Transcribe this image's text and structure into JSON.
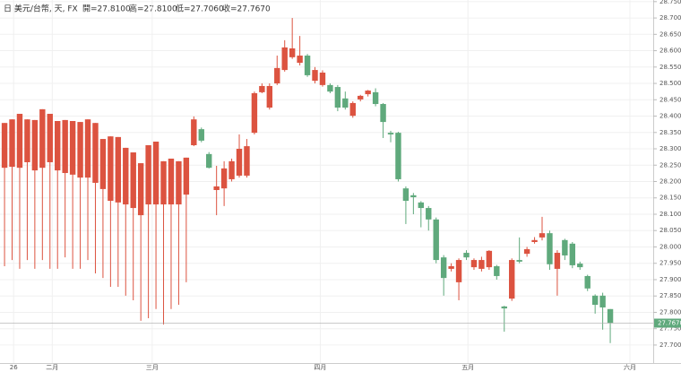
{
  "chart_data": {
    "type": "candlestick",
    "header": {
      "symbol": "日 美元/台幣, 天, FX",
      "open": "開=27.8100",
      "high": "高=27.8100",
      "low": "低=27.7060",
      "close": "收=27.7670"
    },
    "up_color": "#dc5340",
    "down_color": "#5fa97c",
    "grid": true,
    "open": [
      28.242,
      28.245,
      28.242,
      28.259,
      28.234,
      28.242,
      28.259,
      28.234,
      28.226,
      28.221,
      28.212,
      28.212,
      28.196,
      28.177,
      28.141,
      28.136,
      28.13,
      28.119,
      28.097,
      28.13,
      28.13,
      28.13,
      28.13,
      28.13,
      28.16,
      28.311,
      28.36,
      28.284,
      28.174,
      28.179,
      28.207,
      28.218,
      28.218,
      28.349,
      28.473,
      28.426,
      28.5,
      28.541,
      28.58,
      28.563,
      28.585,
      28.508,
      28.495,
      28.495,
      28.489,
      28.454,
      28.401,
      28.451,
      28.467,
      28.473,
      28.437,
      28.349,
      28.349,
      28.179,
      28.158,
      28.136,
      28.119,
      28.084,
      27.968,
      27.933,
      27.892,
      27.982,
      27.938,
      27.933,
      27.938,
      27.941,
      27.818,
      27.842,
      27.96,
      27.979,
      28.015,
      28.029,
      28.042,
      27.933,
      28.021,
      28.01,
      27.949,
      27.911,
      27.851,
      27.851,
      27.81
    ],
    "high": [
      28.379,
      28.39,
      28.407,
      28.39,
      28.388,
      28.421,
      28.407,
      28.385,
      28.388,
      28.385,
      28.382,
      28.39,
      28.379,
      28.33,
      28.338,
      28.336,
      28.303,
      28.289,
      28.256,
      28.311,
      28.322,
      28.262,
      28.27,
      28.262,
      28.273,
      28.399,
      28.365,
      28.29,
      28.248,
      28.262,
      28.27,
      28.344,
      28.33,
      28.475,
      28.5,
      28.5,
      28.585,
      28.632,
      28.7,
      28.645,
      28.59,
      28.55,
      28.54,
      28.5,
      28.495,
      28.475,
      28.445,
      28.465,
      28.48,
      28.485,
      28.44,
      28.355,
      28.352,
      28.185,
      28.165,
      28.14,
      28.125,
      28.09,
      27.975,
      27.95,
      27.965,
      27.99,
      27.965,
      27.97,
      27.99,
      27.945,
      27.82,
      27.965,
      28.029,
      28.0,
      28.03,
      28.092,
      28.05,
      27.99,
      28.025,
      28.015,
      27.955,
      27.915,
      27.855,
      27.86,
      27.81
    ],
    "low": [
      27.941,
      27.96,
      27.933,
      27.96,
      27.933,
      27.96,
      27.933,
      27.933,
      27.968,
      27.933,
      27.933,
      27.96,
      27.919,
      27.905,
      27.878,
      27.878,
      27.851,
      27.837,
      27.774,
      27.782,
      27.81,
      27.763,
      27.81,
      27.823,
      27.892,
      28.308,
      28.32,
      28.24,
      28.097,
      28.125,
      28.2,
      28.212,
      28.212,
      28.344,
      28.47,
      28.42,
      28.495,
      28.536,
      28.575,
      28.555,
      28.52,
      28.5,
      28.49,
      28.47,
      28.415,
      28.42,
      28.395,
      28.445,
      28.46,
      28.43,
      28.333,
      28.32,
      28.2,
      28.07,
      28.1,
      28.06,
      28.05,
      27.95,
      27.851,
      27.925,
      27.837,
      27.96,
      27.93,
      27.925,
      27.93,
      27.9,
      27.741,
      27.835,
      27.95,
      27.97,
      28.01,
      28.02,
      27.93,
      27.851,
      27.96,
      27.935,
      27.93,
      27.865,
      27.796,
      27.747,
      27.706
    ],
    "close": [
      28.379,
      28.39,
      28.407,
      28.39,
      28.388,
      28.421,
      28.407,
      28.385,
      28.388,
      28.385,
      28.382,
      28.39,
      28.379,
      28.33,
      28.338,
      28.336,
      28.303,
      28.289,
      28.256,
      28.311,
      28.322,
      28.262,
      28.27,
      28.262,
      28.273,
      28.39,
      28.325,
      28.242,
      28.185,
      28.24,
      28.262,
      28.3,
      28.308,
      28.47,
      28.492,
      28.492,
      28.547,
      28.61,
      28.607,
      28.585,
      28.525,
      28.541,
      28.533,
      28.475,
      28.426,
      28.426,
      28.44,
      28.462,
      28.478,
      28.437,
      28.382,
      28.344,
      28.207,
      28.141,
      28.152,
      28.119,
      28.084,
      27.96,
      27.905,
      27.941,
      27.96,
      27.968,
      27.96,
      27.96,
      27.988,
      27.911,
      27.812,
      27.96,
      27.955,
      27.993,
      28.021,
      28.042,
      27.947,
      27.982,
      27.974,
      27.944,
      27.938,
      27.873,
      27.823,
      27.815,
      27.767
    ],
    "last_price": {
      "value": 27.767,
      "label": "27.7670"
    },
    "xlim": [
      -0.6,
      85.2
    ],
    "xticks": [
      {
        "value": 1.2,
        "label": "26"
      },
      {
        "value": 6.3,
        "label": "二月"
      },
      {
        "value": 19.5,
        "label": "三月"
      },
      {
        "value": 41.7,
        "label": "四月"
      },
      {
        "value": 61.2,
        "label": "五月"
      },
      {
        "value": 82.6,
        "label": "六月"
      }
    ],
    "ylim": [
      27.645,
      28.755
    ],
    "yticks": [
      {
        "value": 27.7,
        "label": "27.7000"
      },
      {
        "value": 27.75,
        "label": "27.7500"
      },
      {
        "value": 27.8,
        "label": "27.8000"
      },
      {
        "value": 27.85,
        "label": "27.8500"
      },
      {
        "value": 27.9,
        "label": "27.9000"
      },
      {
        "value": 27.95,
        "label": "27.9500"
      },
      {
        "value": 28,
        "label": "28.0000"
      },
      {
        "value": 28.05,
        "label": "28.0500"
      },
      {
        "value": 28.1,
        "label": "28.1000"
      },
      {
        "value": 28.15,
        "label": "28.1500"
      },
      {
        "value": 28.2,
        "label": "28.2000"
      },
      {
        "value": 28.25,
        "label": "28.2500"
      },
      {
        "value": 28.3,
        "label": "28.3000"
      },
      {
        "value": 28.35,
        "label": "28.3500"
      },
      {
        "value": 28.4,
        "label": "28.4000"
      },
      {
        "value": 28.45,
        "label": "28.4500"
      },
      {
        "value": 28.5,
        "label": "28.5000"
      },
      {
        "value": 28.55,
        "label": "28.5500"
      },
      {
        "value": 28.6,
        "label": "28.6000"
      },
      {
        "value": 28.65,
        "label": "28.6500"
      },
      {
        "value": 28.7,
        "label": "28.7000"
      },
      {
        "value": 28.75,
        "label": "28.7500"
      }
    ]
  }
}
